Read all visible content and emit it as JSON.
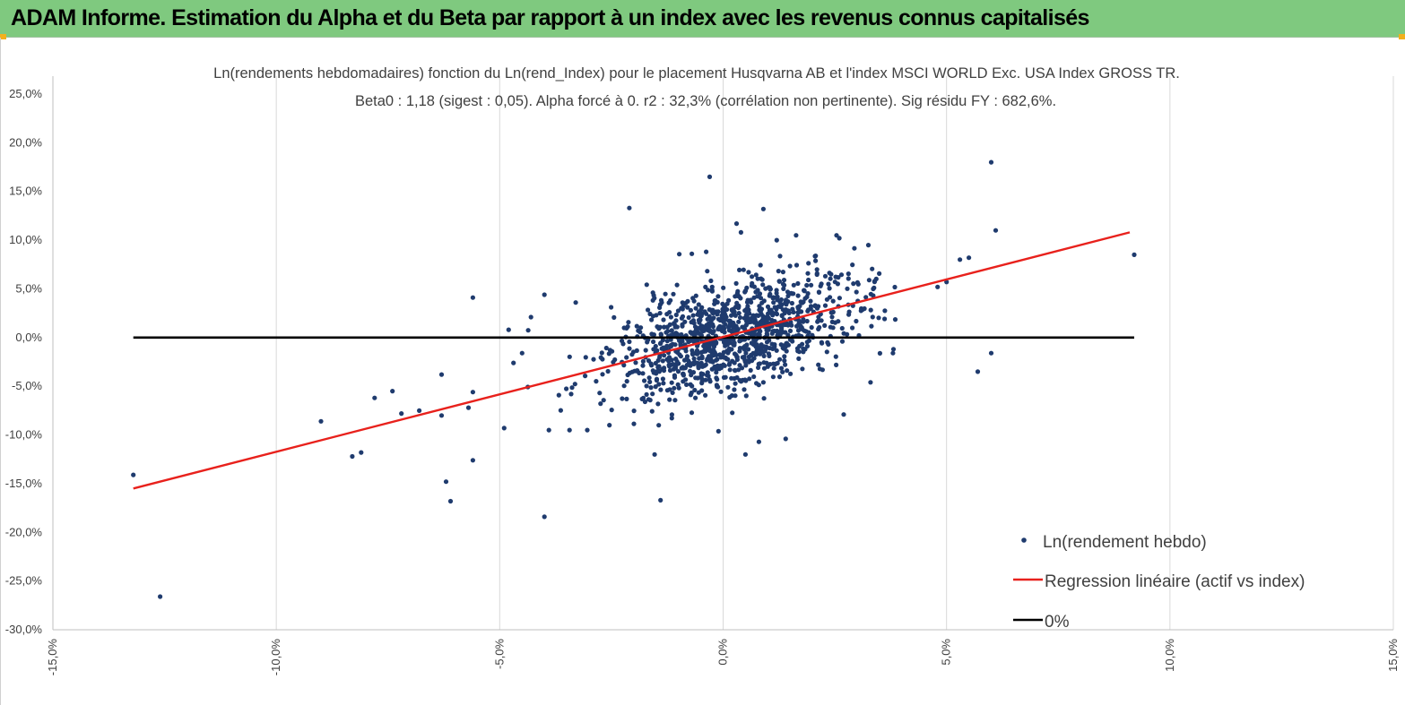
{
  "banner": {
    "title": "ADAM Informe. Estimation du Alpha et du Beta par rapport à un index avec les revenus connus capitalisés",
    "background": "#7fc97f",
    "corner_color": "#f2b01e"
  },
  "chart_data": {
    "type": "scatter",
    "title_lines": [
      "Ln(rendements hebdomadaires) fonction du Ln(rend_Index) pour le placement Husqvarna AB et l'index MSCI WORLD Exc. USA Index GROSS TR.",
      "Beta0 : 1,18 (sigest : 0,05). Alpha forcé à 0. r2 : 32,3% (corrélation non pertinente). Sig résidu FY : 682,6%."
    ],
    "xlim": [
      -0.15,
      0.15
    ],
    "ylim": [
      -0.3,
      0.25
    ],
    "x_ticks": [
      -0.15,
      -0.1,
      -0.05,
      0.0,
      0.05,
      0.1,
      0.15
    ],
    "x_tick_labels": [
      "-15,0%",
      "-10,0%",
      "-5,0%",
      "0,0%",
      "5,0%",
      "10,0%",
      "15,0%"
    ],
    "y_ticks": [
      0.25,
      0.2,
      0.15,
      0.1,
      0.05,
      0.0,
      -0.05,
      -0.1,
      -0.15,
      -0.2,
      -0.25,
      -0.3
    ],
    "y_tick_labels": [
      "25,0%",
      "20,0%",
      "15,0%",
      "10,0%",
      "5,0%",
      "0,0%",
      "-5,0%",
      "-10,0%",
      "-15,0%",
      "-20,0%",
      "-25,0%",
      "-30,0%"
    ],
    "grid": "vertical",
    "legend_position": "bottom-right",
    "colors": {
      "points": "#1f3b6e",
      "regression": "#e8211c",
      "zero": "#000000"
    },
    "series": [
      {
        "name": "Ln(rendement hebdo)",
        "kind": "scatter",
        "cloud": {
          "count": 1150,
          "x_mean": 0.002,
          "x_sd": 0.014,
          "beta": 1.18,
          "resid_sd": 0.028,
          "seed": 7
        },
        "notable_points": [
          [
            -0.132,
            -0.141
          ],
          [
            -0.126,
            -0.266
          ],
          [
            -0.09,
            -0.086
          ],
          [
            -0.083,
            -0.122
          ],
          [
            -0.081,
            -0.118
          ],
          [
            -0.078,
            -0.062
          ],
          [
            -0.074,
            -0.055
          ],
          [
            -0.072,
            -0.078
          ],
          [
            -0.068,
            -0.075
          ],
          [
            -0.063,
            -0.08
          ],
          [
            -0.063,
            -0.038
          ],
          [
            -0.062,
            -0.148
          ],
          [
            -0.061,
            -0.168
          ],
          [
            -0.057,
            -0.072
          ],
          [
            -0.056,
            -0.056
          ],
          [
            -0.056,
            -0.126
          ],
          [
            -0.056,
            0.041
          ],
          [
            -0.049,
            -0.093
          ],
          [
            -0.048,
            0.008
          ],
          [
            -0.045,
            -0.016
          ],
          [
            -0.043,
            0.021
          ],
          [
            -0.04,
            -0.184
          ],
          [
            -0.04,
            0.044
          ],
          [
            -0.033,
            0.036
          ],
          [
            -0.021,
            0.133
          ],
          [
            -0.014,
            -0.167
          ],
          [
            -0.007,
            0.086
          ],
          [
            -0.003,
            0.165
          ],
          [
            0.003,
            0.117
          ],
          [
            0.004,
            0.108
          ],
          [
            0.005,
            -0.12
          ],
          [
            0.008,
            -0.107
          ],
          [
            0.009,
            0.132
          ],
          [
            0.012,
            0.1
          ],
          [
            0.014,
            -0.104
          ],
          [
            0.026,
            0.102
          ],
          [
            0.027,
            -0.079
          ],
          [
            0.033,
            -0.046
          ],
          [
            0.038,
            -0.016
          ],
          [
            0.048,
            0.052
          ],
          [
            0.05,
            0.057
          ],
          [
            0.053,
            0.08
          ],
          [
            0.055,
            0.082
          ],
          [
            0.057,
            -0.035
          ],
          [
            0.06,
            0.18
          ],
          [
            0.06,
            -0.016
          ],
          [
            0.061,
            0.11
          ],
          [
            0.092,
            0.085
          ]
        ]
      },
      {
        "name": "Regression linéaire (actif vs index)",
        "kind": "line",
        "points": [
          [
            -0.132,
            -0.155
          ],
          [
            0.091,
            0.108
          ]
        ]
      },
      {
        "name": "0%",
        "kind": "line",
        "points": [
          [
            -0.132,
            0.0
          ],
          [
            0.092,
            0.0
          ]
        ]
      }
    ]
  }
}
